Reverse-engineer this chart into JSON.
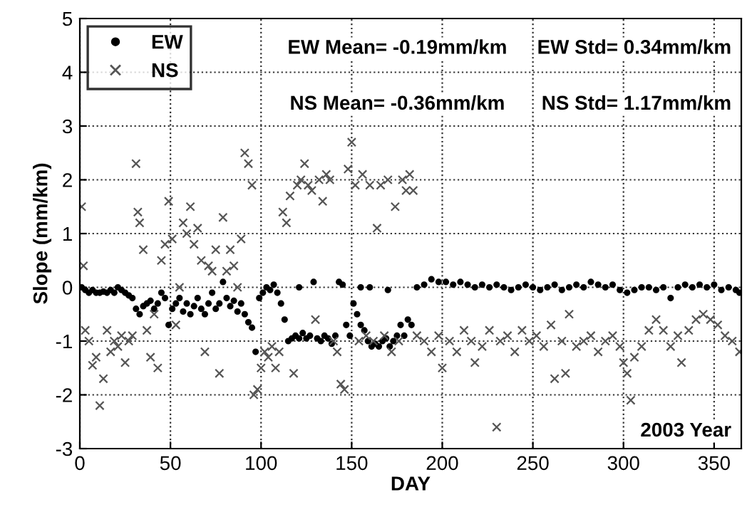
{
  "chart_data": {
    "type": "scatter",
    "xlabel": "DAY",
    "ylabel": "Slope (mm/km)",
    "xlim": [
      0,
      365
    ],
    "ylim": [
      -3,
      5
    ],
    "xticks": [
      0,
      50,
      100,
      150,
      200,
      250,
      300,
      350
    ],
    "yticks": [
      -3,
      -2,
      -1,
      0,
      1,
      2,
      3,
      4,
      5
    ],
    "grid": true,
    "legend": "top left",
    "annotations": [
      "EW Mean= -0.19mm/km",
      "EW Std= 0.34mm/km",
      "NS Mean= -0.36mm/km",
      "NS Std= 1.17mm/km",
      "2003 Year"
    ],
    "series": [
      {
        "name": "EW",
        "color": "#000000",
        "marker": "circle",
        "x": [
          1,
          3,
          5,
          7,
          9,
          11,
          13,
          15,
          17,
          19,
          21,
          23,
          25,
          27,
          29,
          31,
          33,
          35,
          37,
          39,
          41,
          43,
          45,
          47,
          49,
          51,
          53,
          55,
          57,
          59,
          61,
          63,
          65,
          67,
          69,
          71,
          73,
          75,
          77,
          79,
          81,
          83,
          85,
          87,
          89,
          91,
          93,
          95,
          97,
          99,
          101,
          103,
          105,
          107,
          109,
          111,
          113,
          115,
          117,
          119,
          121,
          123,
          125,
          127,
          129,
          131,
          133,
          135,
          137,
          139,
          141,
          143,
          145,
          147,
          149,
          151,
          153,
          155,
          157,
          159,
          161,
          163,
          165,
          167,
          169,
          171,
          173,
          175,
          177,
          179,
          181,
          183,
          186,
          190,
          194,
          198,
          202,
          206,
          210,
          214,
          218,
          222,
          226,
          230,
          234,
          238,
          242,
          246,
          250,
          254,
          258,
          262,
          266,
          270,
          274,
          278,
          282,
          286,
          290,
          294,
          298,
          302,
          306,
          310,
          314,
          318,
          322,
          326,
          330,
          334,
          338,
          342,
          346,
          350,
          354,
          358,
          362,
          364,
          121,
          155,
          160,
          170
        ],
        "values": [
          0.0,
          -0.05,
          -0.1,
          -0.05,
          -0.1,
          -0.1,
          -0.08,
          -0.1,
          -0.05,
          -0.1,
          0.0,
          -0.05,
          -0.1,
          -0.15,
          -0.2,
          -0.4,
          -0.5,
          -0.35,
          -0.3,
          -0.25,
          -0.4,
          -0.3,
          -0.1,
          -0.2,
          -0.7,
          -0.4,
          -0.3,
          -0.2,
          -0.45,
          -0.3,
          -0.5,
          -0.35,
          -0.2,
          -0.4,
          -0.5,
          -0.3,
          -0.1,
          -0.4,
          -0.3,
          0.1,
          -0.2,
          -0.35,
          -0.25,
          -0.45,
          -0.3,
          -0.5,
          -0.65,
          -0.75,
          -1.2,
          -0.2,
          -0.1,
          0.0,
          -0.05,
          0.05,
          -0.1,
          -0.3,
          -0.6,
          -1.0,
          -0.95,
          -0.9,
          -0.95,
          -0.85,
          -0.95,
          -0.9,
          0.1,
          -0.95,
          -1.0,
          -0.9,
          -0.95,
          -1.05,
          -0.9,
          0.1,
          0.05,
          -0.7,
          -0.9,
          -0.3,
          -0.5,
          -0.7,
          -0.8,
          -1.0,
          -1.1,
          -1.05,
          -1.1,
          -1.0,
          -0.95,
          -1.1,
          -1.0,
          -0.9,
          -0.7,
          -0.9,
          -0.6,
          -0.7,
          0.0,
          0.05,
          0.15,
          0.1,
          0.1,
          0.05,
          0.1,
          0.05,
          0.0,
          0.05,
          0.0,
          0.05,
          0.0,
          -0.05,
          0.0,
          0.05,
          0.0,
          -0.05,
          0.0,
          0.05,
          -0.05,
          0.0,
          0.05,
          0.0,
          0.1,
          0.05,
          0.0,
          0.05,
          -0.05,
          -0.1,
          -0.05,
          0.0,
          0.0,
          -0.05,
          0.0,
          -0.2,
          0.0,
          0.05,
          0.0,
          0.05,
          0.0,
          0.05,
          -0.05,
          0.0,
          -0.05,
          -0.1,
          0.0,
          0.0,
          0.0,
          -0.05
        ]
      },
      {
        "name": "NS",
        "color": "#555555",
        "marker": "cross",
        "x": [
          1,
          2,
          3,
          5,
          7,
          9,
          11,
          13,
          15,
          17,
          19,
          21,
          23,
          25,
          27,
          29,
          31,
          32,
          33,
          35,
          37,
          39,
          41,
          43,
          45,
          47,
          49,
          51,
          53,
          55,
          57,
          59,
          61,
          63,
          65,
          67,
          69,
          71,
          73,
          75,
          77,
          79,
          81,
          83,
          85,
          87,
          89,
          91,
          93,
          95,
          96,
          98,
          100,
          102,
          104,
          106,
          108,
          110,
          112,
          114,
          116,
          118,
          120,
          122,
          124,
          126,
          128,
          130,
          132,
          134,
          136,
          138,
          140,
          142,
          144,
          146,
          148,
          150,
          152,
          154,
          156,
          158,
          160,
          162,
          164,
          166,
          168,
          170,
          172,
          174,
          176,
          178,
          180,
          182,
          184,
          186,
          190,
          194,
          198,
          200,
          204,
          208,
          212,
          216,
          218,
          222,
          226,
          230,
          232,
          236,
          240,
          244,
          248,
          252,
          256,
          260,
          262,
          266,
          268,
          270,
          274,
          278,
          282,
          286,
          290,
          294,
          298,
          300,
          302,
          304,
          306,
          310,
          314,
          318,
          322,
          326,
          330,
          332,
          336,
          340,
          344,
          348,
          352,
          356,
          360,
          364
        ],
        "values": [
          1.5,
          0.4,
          -0.8,
          -1.0,
          -1.45,
          -1.3,
          -2.2,
          -1.7,
          -0.8,
          -1.2,
          -1.0,
          -1.1,
          -0.9,
          -1.4,
          -1.0,
          -0.9,
          2.3,
          1.4,
          1.2,
          0.7,
          -0.8,
          -1.3,
          -0.5,
          -1.5,
          0.5,
          0.8,
          1.6,
          0.9,
          -0.7,
          0.0,
          1.2,
          1.0,
          1.5,
          0.8,
          1.1,
          0.5,
          -1.2,
          0.4,
          0.3,
          0.7,
          -1.6,
          1.3,
          0.3,
          0.7,
          0.4,
          0.0,
          0.9,
          2.5,
          2.3,
          1.9,
          -2.0,
          -1.9,
          -1.5,
          -1.2,
          -1.3,
          -1.1,
          -1.5,
          -1.2,
          1.4,
          1.2,
          1.7,
          -1.6,
          1.9,
          2.0,
          2.3,
          1.9,
          1.8,
          -0.6,
          2.0,
          1.6,
          2.1,
          2.0,
          -1.0,
          -1.2,
          -1.8,
          -1.9,
          2.2,
          2.7,
          1.9,
          -1.0,
          2.1,
          -0.9,
          1.9,
          -1.0,
          1.1,
          1.9,
          -0.9,
          2.0,
          -1.2,
          1.5,
          -1.0,
          2.0,
          1.8,
          2.1,
          1.8,
          -0.9,
          -1.0,
          -1.2,
          -0.9,
          -1.5,
          -1.0,
          -1.2,
          -0.8,
          -1.0,
          -1.4,
          -1.1,
          -0.8,
          -2.6,
          -1.0,
          -0.9,
          -1.2,
          -0.8,
          -1.0,
          -0.9,
          -1.1,
          -0.7,
          -1.7,
          -1.0,
          -1.6,
          -0.5,
          -1.1,
          -1.0,
          -0.9,
          -1.2,
          -1.0,
          -0.9,
          -1.1,
          -1.4,
          -1.6,
          -2.1,
          -1.3,
          -1.1,
          -0.8,
          -0.6,
          -0.8,
          -1.1,
          -0.9,
          -1.4,
          -0.8,
          -0.6,
          -0.5,
          -0.6,
          -0.7,
          -0.9,
          -1.0,
          -1.2
        ]
      }
    ]
  }
}
